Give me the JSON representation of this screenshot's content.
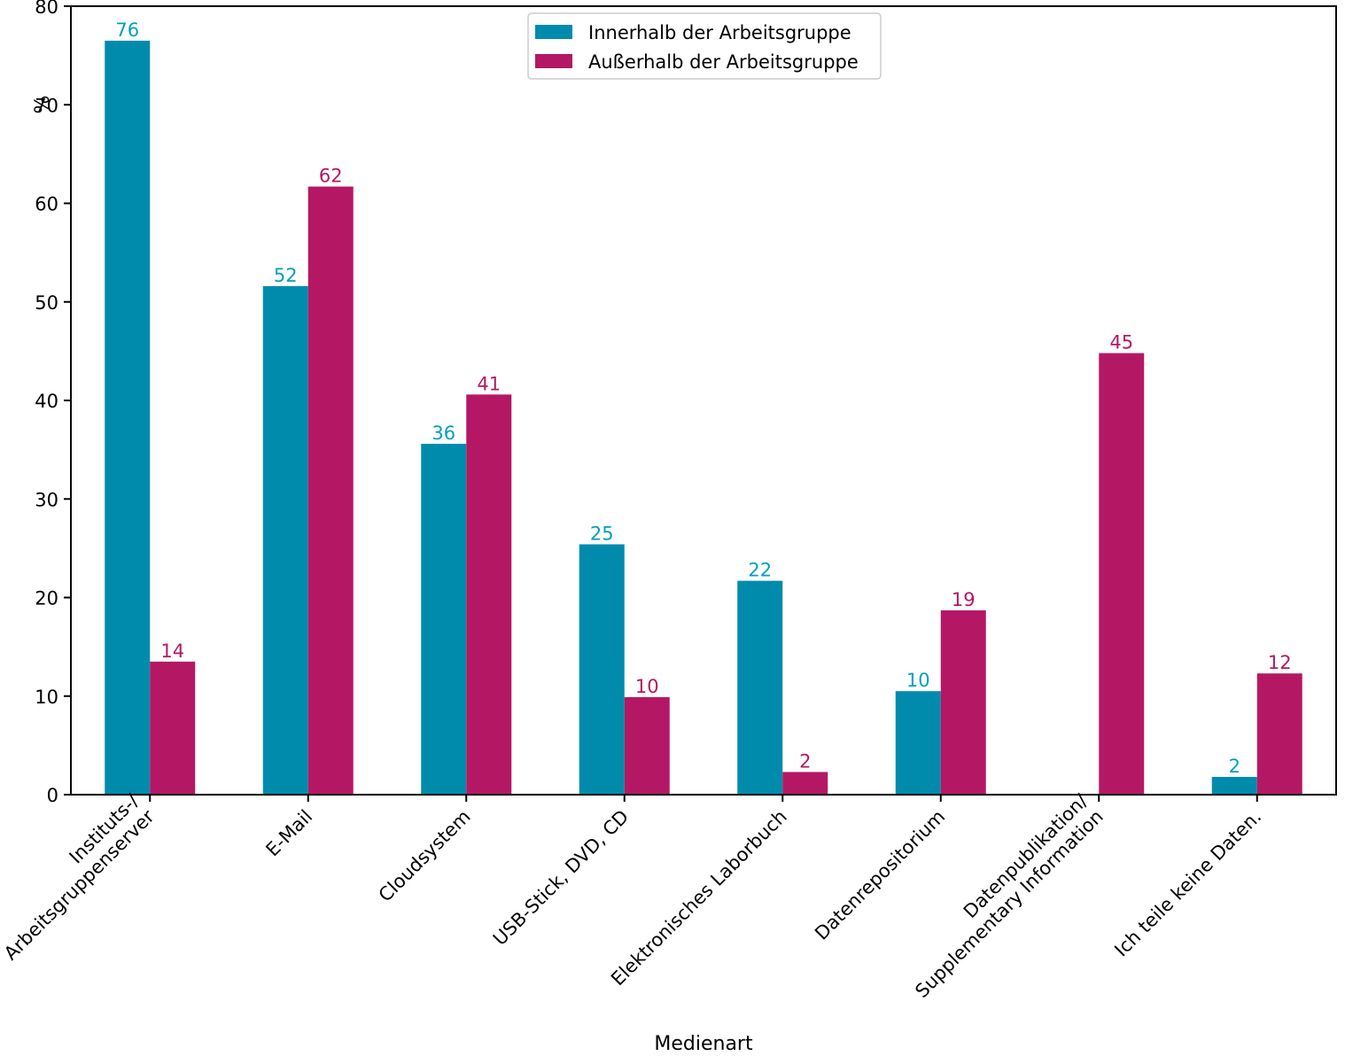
{
  "chart_data": {
    "type": "bar",
    "title": "",
    "xlabel": "Medienart",
    "ylabel": "%",
    "ylim": [
      0,
      80
    ],
    "yticks": [
      0,
      10,
      20,
      30,
      40,
      50,
      60,
      70,
      80
    ],
    "grid": false,
    "legend_position": "top-center",
    "categories": [
      "Instituts-/\nArbeitsgruppenserver",
      "E-Mail",
      "Cloudsystem",
      "USB-Stick, DVD, CD",
      "Elektronisches Laborbuch",
      "Datenrepositorium",
      "Datenpublikation/\nSupplementary Information",
      "Ich teile keine Daten."
    ],
    "series": [
      {
        "name": "Innerhalb der Arbeitsgruppe",
        "color": "#008bad",
        "label_color": "#00a0be",
        "values": [
          76.5,
          51.6,
          35.6,
          25.4,
          21.7,
          10.5,
          null,
          1.8
        ],
        "data_labels": [
          "76",
          "52",
          "36",
          "25",
          "22",
          "10",
          "",
          "2"
        ]
      },
      {
        "name": "Außerhalb der Arbeitsgruppe",
        "color": "#b41864",
        "label_color": "#b41864",
        "values": [
          13.5,
          61.7,
          40.6,
          9.9,
          2.3,
          18.7,
          44.8,
          12.3
        ],
        "data_labels": [
          "14",
          "62",
          "41",
          "10",
          "2",
          "19",
          "45",
          "12"
        ]
      }
    ]
  }
}
